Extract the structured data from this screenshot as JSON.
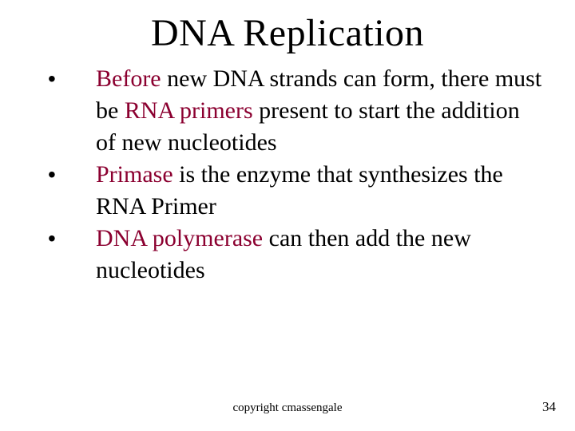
{
  "title": "DNA Replication",
  "bullets": [
    {
      "parts": [
        {
          "t": "Before",
          "kw": true
        },
        {
          "t": " new DNA strands can form, there must be ",
          "kw": false
        },
        {
          "t": "RNA primers",
          "kw": true
        },
        {
          "t": " present to start the addition of new nucleotides",
          "kw": false
        }
      ]
    },
    {
      "parts": [
        {
          "t": "Primase",
          "kw": true
        },
        {
          "t": " is the enzyme that synthesizes the RNA Primer",
          "kw": false
        }
      ]
    },
    {
      "parts": [
        {
          "t": "DNA polymerase",
          "kw": true
        },
        {
          "t": " can then add the new nucleotides",
          "kw": false
        }
      ]
    }
  ],
  "footer": {
    "copyright": "copyright cmassengale",
    "page_number": "34"
  },
  "colors": {
    "keyword": "#8b0030",
    "text": "#000000",
    "background": "#ffffff"
  },
  "bullet_char": "•"
}
